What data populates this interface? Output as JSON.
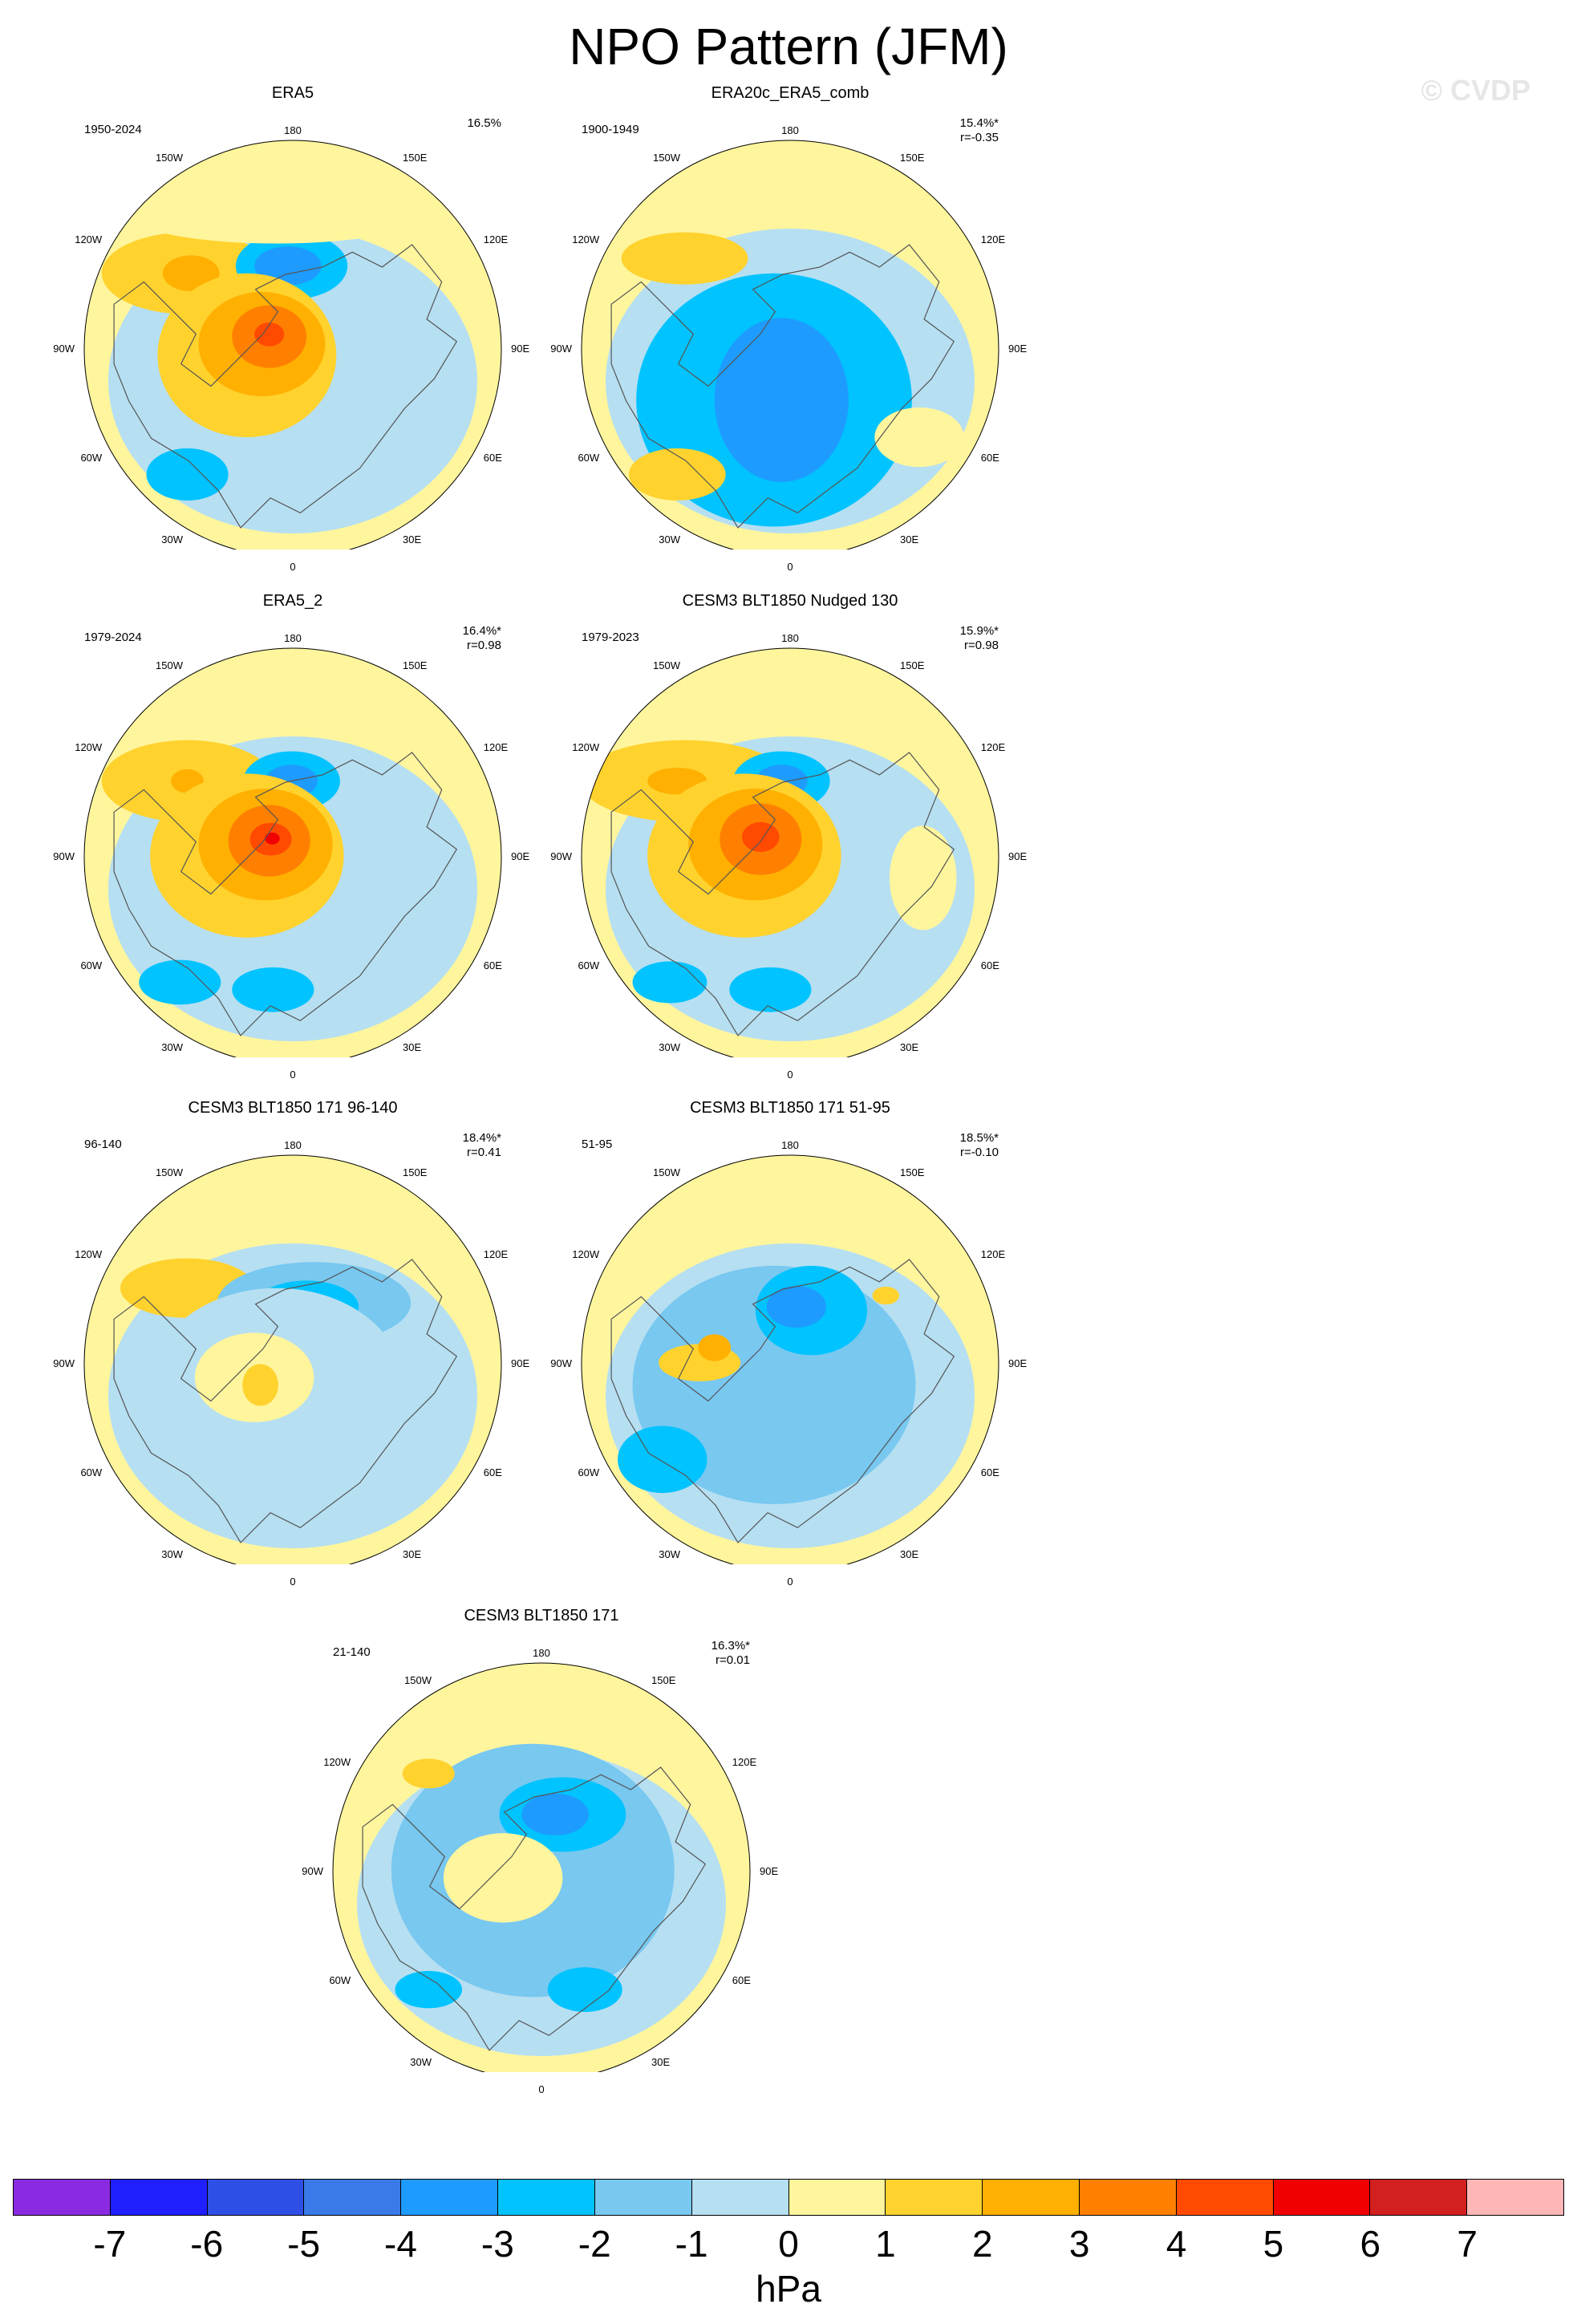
{
  "title": "NPO Pattern (JFM)",
  "watermark": "© CVDP",
  "units": "hPa",
  "colorbar": {
    "labels": [
      "-7",
      "-6",
      "-5",
      "-4",
      "-3",
      "-2",
      "-1",
      "0",
      "1",
      "2",
      "3",
      "4",
      "5",
      "6",
      "7"
    ],
    "colors": [
      "#8a2be2",
      "#1f1fff",
      "#2e4fe6",
      "#3a7ae8",
      "#1e9bff",
      "#00c3ff",
      "#78c8f0",
      "#b6dff2",
      "#fff59d",
      "#ffd22e",
      "#ffb000",
      "#ff8000",
      "#ff4a00",
      "#f00000",
      "#d21f1f",
      "#ffb6b6"
    ]
  },
  "lon_labels": [
    "180",
    "150E",
    "120E",
    "90E",
    "60E",
    "30E",
    "0",
    "30W",
    "60W",
    "90W",
    "120W",
    "150W"
  ],
  "panels": [
    {
      "title": "ERA5",
      "years": "1950-2024",
      "pct": "16.5%",
      "r": ""
    },
    {
      "title": "ERA20c_ERA5_comb",
      "years": "1900-1949",
      "pct": "15.4%*",
      "r": "r=-0.35"
    },
    {
      "title": "ERA5_2",
      "years": "1979-2024",
      "pct": "16.4%*",
      "r": "r=0.98"
    },
    {
      "title": "CESM3 BLT1850 Nudged 130",
      "years": "1979-2023",
      "pct": "15.9%*",
      "r": "r=0.98"
    },
    {
      "title": "CESM3 BLT1850 171 96-140",
      "years": "96-140",
      "pct": "18.4%*",
      "r": "r=0.41"
    },
    {
      "title": "CESM3 BLT1850 171 51-95",
      "years": "51-95",
      "pct": "18.5%*",
      "r": "r=-0.10"
    },
    {
      "title": "CESM3 BLT1850 171",
      "years": "21-140",
      "pct": "16.3%*",
      "r": "r=0.01"
    }
  ]
}
